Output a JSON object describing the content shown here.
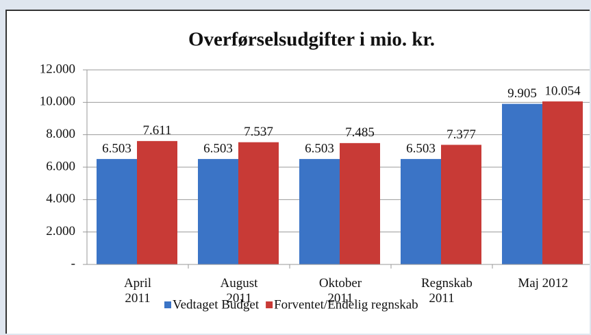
{
  "chart_data": {
    "type": "bar",
    "title": "Overførselsudgifter i mio. kr.",
    "categories": [
      "April 2011",
      "August 2011",
      "Oktober 2011",
      "Regnskab 2011",
      "Maj 2012"
    ],
    "series": [
      {
        "name": "Vedtaget Budget",
        "color": "#3b74c6",
        "values": [
          6503,
          6503,
          6503,
          6503,
          9905
        ],
        "value_labels": [
          "6.503",
          "6.503",
          "6.503",
          "6.503",
          "9.905"
        ]
      },
      {
        "name": "Forventet/Endelig regnskab",
        "color": "#c83a36",
        "values": [
          7611,
          7537,
          7485,
          7377,
          10054
        ],
        "value_labels": [
          "7.611",
          "7.537",
          "7.485",
          "7.377",
          "10.054"
        ]
      }
    ],
    "ylim": [
      0,
      12000
    ],
    "yticks": [
      {
        "value": 0,
        "label": "-"
      },
      {
        "value": 2000,
        "label": "2.000"
      },
      {
        "value": 4000,
        "label": "4.000"
      },
      {
        "value": 6000,
        "label": "6.000"
      },
      {
        "value": 8000,
        "label": "8.000"
      },
      {
        "value": 10000,
        "label": "10.000"
      },
      {
        "value": 12000,
        "label": "12.000"
      }
    ],
    "grid": true,
    "legend": "bottom"
  }
}
